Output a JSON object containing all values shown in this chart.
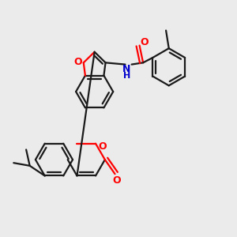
{
  "bg_color": "#ebebeb",
  "bond_color": "#1a1a1a",
  "o_color": "#ff0000",
  "n_color": "#0000cc",
  "lw": 1.6,
  "xlim": [
    0.0,
    6.5
  ],
  "ylim": [
    0.0,
    6.5
  ]
}
